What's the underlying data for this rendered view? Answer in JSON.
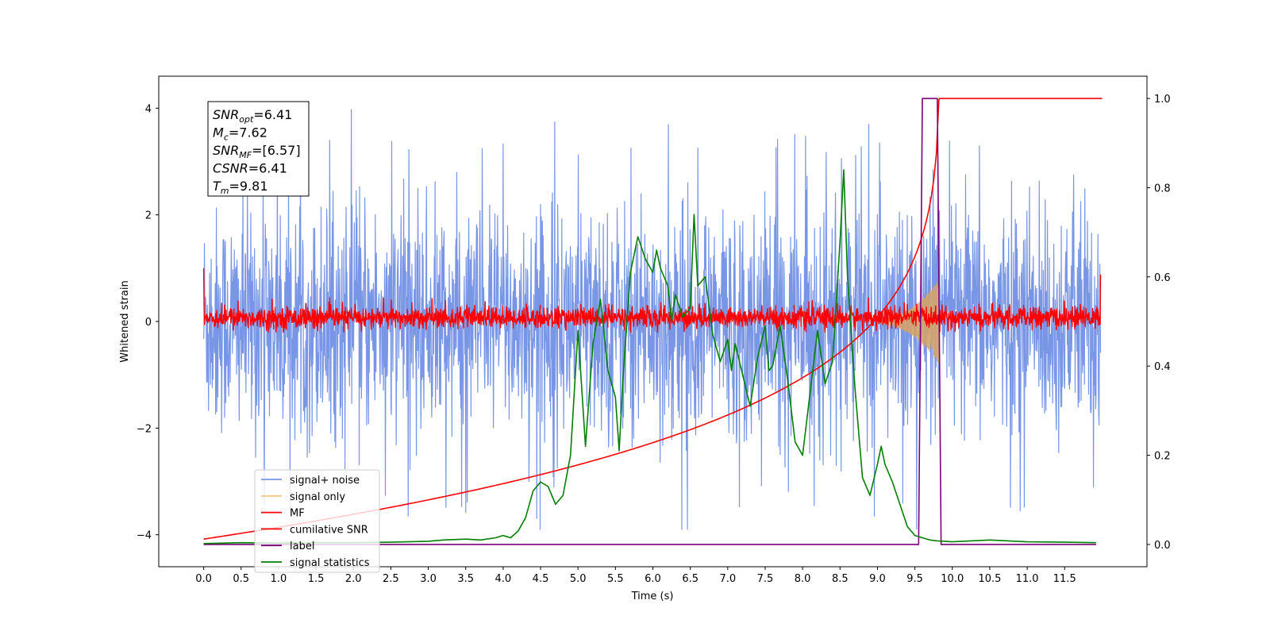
{
  "chart_data": {
    "type": "line",
    "xlabel": "Time (s)",
    "ylabel": "Whitened strain",
    "xlim": [
      -0.6,
      12.6
    ],
    "ylim": [
      -4.6,
      4.6
    ],
    "y2lim": [
      -0.05,
      1.05
    ],
    "x_ticks": [
      0.0,
      0.5,
      1.0,
      1.5,
      2.0,
      2.5,
      3.0,
      3.5,
      4.0,
      4.5,
      5.0,
      5.5,
      6.0,
      6.5,
      7.0,
      7.5,
      8.0,
      8.5,
      9.0,
      9.5,
      10.0,
      10.5,
      11.0,
      11.5
    ],
    "x_tick_labels": [
      "0.0",
      "0.5",
      "1.0",
      "1.5",
      "2.0",
      "2.5",
      "3.0",
      "3.5",
      "4.0",
      "4.5",
      "5.0",
      "5.5",
      "6.0",
      "6.5",
      "7.0",
      "7.5",
      "8.0",
      "8.5",
      "9.0",
      "9.5",
      "10.0",
      "10.5",
      "11.0",
      "11.5"
    ],
    "y_ticks": [
      -4,
      -2,
      0,
      2,
      4
    ],
    "y_tick_labels": [
      "−4",
      "−2",
      "0",
      "2",
      "4"
    ],
    "y2_ticks": [
      0.0,
      0.2,
      0.4,
      0.6,
      0.8,
      1.0
    ],
    "y2_tick_labels": [
      "0.0",
      "0.2",
      "0.4",
      "0.6",
      "0.8",
      "1.0"
    ],
    "legend_position": "lower-left",
    "grid": false,
    "annotation": [
      {
        "base": "SNR",
        "sub": "opt",
        "rest": "=6.41"
      },
      {
        "base": "M",
        "sub": "c",
        "rest": "=7.62"
      },
      {
        "base": "SNR",
        "sub": "MF",
        "rest": "=[6.57]"
      },
      {
        "base": "CSNR",
        "sub": "",
        "rest": "=6.41"
      },
      {
        "base": "T",
        "sub": "m",
        "rest": "=9.81"
      }
    ],
    "series": [
      {
        "name": "signal+ noise",
        "axis": "left",
        "color": "#7895e6",
        "style": "noise",
        "x_range": [
          0.0,
          11.98
        ],
        "y_spread": [
          -2.6,
          2.6
        ],
        "y_extremes": [
          -3.9,
          4.15
        ]
      },
      {
        "name": "signal only",
        "axis": "left",
        "color": "#f5c77e",
        "style": "chirp",
        "x_range": [
          9.0,
          9.82
        ],
        "peak_amplitude": 0.75
      },
      {
        "name": "MF",
        "axis": "left",
        "color": "#ff0000",
        "style": "noise",
        "x_range": [
          0.0,
          11.98
        ],
        "y_spread": [
          -0.2,
          0.35
        ],
        "start_value": 1.0,
        "end_value": 0.88
      },
      {
        "name": "cumilative SNR",
        "axis": "right",
        "color": "#ff0000",
        "x": [
          0.0,
          1.0,
          2.0,
          3.0,
          4.0,
          5.0,
          6.0,
          7.0,
          7.5,
          8.0,
          8.5,
          9.0,
          9.3,
          9.5,
          9.65,
          9.75,
          9.82,
          9.83,
          12.0
        ],
        "y": [
          0.01,
          0.08,
          0.12,
          0.155,
          0.19,
          0.24,
          0.28,
          0.34,
          0.37,
          0.41,
          0.46,
          0.54,
          0.6,
          0.66,
          0.74,
          0.84,
          0.97,
          1.0,
          1.0
        ]
      },
      {
        "name": "label",
        "axis": "right",
        "color": "#7b007b",
        "x": [
          0.0,
          9.55,
          9.6,
          9.8,
          9.85,
          11.92
        ],
        "y": [
          0.0,
          0.0,
          1.0,
          1.0,
          0.0,
          0.0
        ]
      },
      {
        "name": "signal statistics",
        "axis": "right",
        "color": "#008000",
        "x": [
          0.0,
          0.5,
          1.0,
          1.5,
          2.0,
          2.5,
          3.0,
          3.2,
          3.5,
          3.7,
          3.9,
          4.0,
          4.1,
          4.2,
          4.3,
          4.4,
          4.5,
          4.6,
          4.7,
          4.8,
          4.9,
          5.0,
          5.05,
          5.1,
          5.2,
          5.3,
          5.4,
          5.5,
          5.55,
          5.6,
          5.7,
          5.8,
          5.9,
          6.0,
          6.05,
          6.1,
          6.2,
          6.25,
          6.3,
          6.4,
          6.5,
          6.55,
          6.6,
          6.7,
          6.8,
          6.9,
          7.0,
          7.05,
          7.1,
          7.2,
          7.3,
          7.4,
          7.5,
          7.55,
          7.6,
          7.7,
          7.8,
          7.9,
          8.0,
          8.1,
          8.2,
          8.3,
          8.4,
          8.5,
          8.55,
          8.6,
          8.7,
          8.8,
          8.9,
          9.0,
          9.05,
          9.1,
          9.2,
          9.3,
          9.4,
          9.5,
          9.6,
          9.7,
          9.8,
          9.9,
          10.0,
          10.5,
          11.0,
          11.5,
          11.92
        ],
        "y": [
          0.002,
          0.004,
          0.003,
          0.004,
          0.004,
          0.005,
          0.007,
          0.01,
          0.012,
          0.01,
          0.015,
          0.02,
          0.015,
          0.03,
          0.06,
          0.12,
          0.14,
          0.13,
          0.09,
          0.11,
          0.2,
          0.48,
          0.35,
          0.22,
          0.45,
          0.55,
          0.39,
          0.33,
          0.21,
          0.37,
          0.61,
          0.69,
          0.64,
          0.61,
          0.66,
          0.62,
          0.58,
          0.5,
          0.56,
          0.51,
          0.53,
          0.74,
          0.58,
          0.6,
          0.47,
          0.41,
          0.46,
          0.39,
          0.45,
          0.38,
          0.31,
          0.42,
          0.49,
          0.39,
          0.4,
          0.49,
          0.37,
          0.23,
          0.2,
          0.34,
          0.48,
          0.36,
          0.41,
          0.68,
          0.84,
          0.6,
          0.35,
          0.15,
          0.11,
          0.18,
          0.22,
          0.18,
          0.14,
          0.09,
          0.04,
          0.02,
          0.015,
          0.01,
          0.008,
          0.007,
          0.006,
          0.01,
          0.006,
          0.005,
          0.004
        ]
      }
    ]
  }
}
